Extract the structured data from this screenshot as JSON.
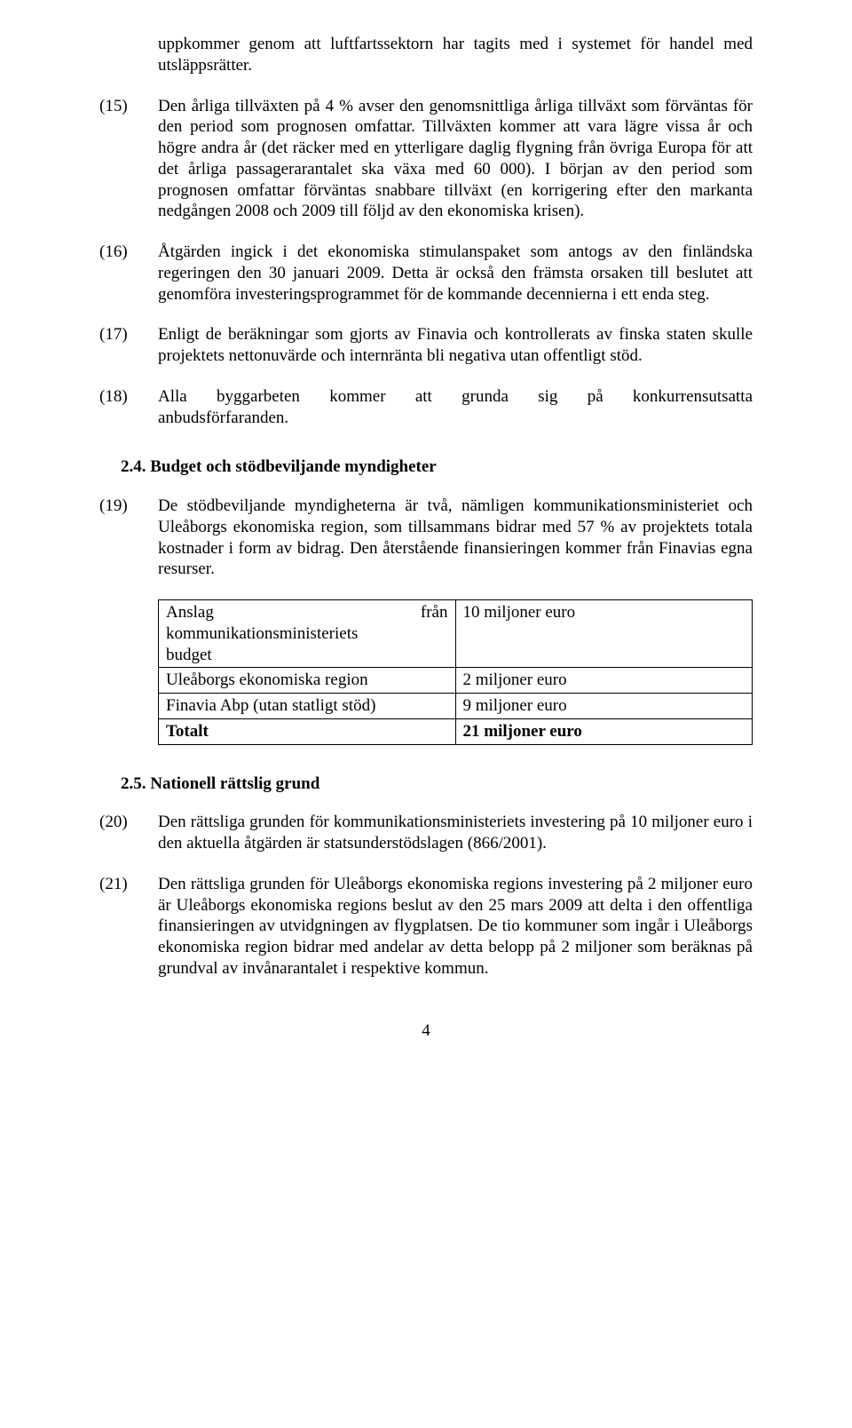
{
  "top_fragment": "uppkommer genom att luftfartssektorn har tagits med i systemet för handel med utsläppsrätter.",
  "paras": {
    "p15": {
      "num": "(15)",
      "text": "Den årliga tillväxten på 4 % avser den genomsnittliga årliga tillväxt som förväntas för den period som prognosen omfattar. Tillväxten kommer att vara lägre vissa år och högre andra år (det räcker med en ytterligare daglig flygning från övriga Europa för att det årliga passagerarantalet ska växa med 60 000). I början av den period som prognosen omfattar förväntas snabbare tillväxt (en korrigering efter den markanta nedgången 2008 och 2009 till följd av den ekonomiska krisen)."
    },
    "p16": {
      "num": "(16)",
      "text": "Åtgärden ingick i det ekonomiska stimulanspaket som antogs av den finländska regeringen den 30 januari 2009. Detta är också den främsta orsaken till beslutet att genomföra investeringsprogrammet för de kommande decennierna i ett enda steg."
    },
    "p17": {
      "num": "(17)",
      "text": "Enligt de beräkningar som gjorts av Finavia och kontrollerats av finska staten skulle projektets nettonuvärde och internränta bli negativa utan offentligt stöd."
    },
    "p18": {
      "num": "(18)",
      "line1_left": "Alla",
      "line1_mid1": "byggarbeten",
      "line1_mid2": "kommer",
      "line1_mid3": "att",
      "line1_mid4": "grunda",
      "line1_mid5": "sig",
      "line1_mid6": "på",
      "line1_right": "konkurrensutsatta",
      "line2": "anbudsförfaranden."
    },
    "p19": {
      "num": "(19)",
      "text": "De stödbeviljande myndigheterna är två, nämligen kommunikationsministeriet och Uleåborgs ekonomiska region, som tillsammans bidrar med 57 % av projektets totala kostnader i form av bidrag. Den återstående finansieringen kommer från Finavias egna resurser."
    },
    "p20": {
      "num": "(20)",
      "text": "Den rättsliga grunden för kommunikationsministeriets investering på 10 miljoner euro i den aktuella åtgärden är statsunderstödslagen (866/2001)."
    },
    "p21": {
      "num": "(21)",
      "text": "Den rättsliga grunden för Uleåborgs ekonomiska regions investering på 2 miljoner euro är Uleåborgs ekonomiska regions beslut av den 25 mars 2009 att delta i den offentliga finansieringen av utvidgningen av flygplatsen. De tio kommuner som ingår i Uleåborgs ekonomiska region bidrar med andelar av detta belopp på 2 miljoner som beräknas på grundval av invånarantalet i respektive kommun."
    }
  },
  "headings": {
    "h24": "2.4. Budget och stödbeviljande myndigheter",
    "h25": "2.5. Nationell rättslig grund"
  },
  "table": {
    "r1": {
      "src_left": "Anslag",
      "src_right": "från",
      "src_line2": "kommunikationsministeriets",
      "src_line3": "budget",
      "amount": "10 miljoner euro"
    },
    "r2": {
      "src": "Uleåborgs ekonomiska region",
      "amount": "2 miljoner euro"
    },
    "r3": {
      "src": "Finavia Abp (utan statligt stöd)",
      "amount": "9 miljoner euro"
    },
    "r4": {
      "src": "Totalt",
      "amount": "21 miljoner euro"
    }
  },
  "page_number": "4"
}
